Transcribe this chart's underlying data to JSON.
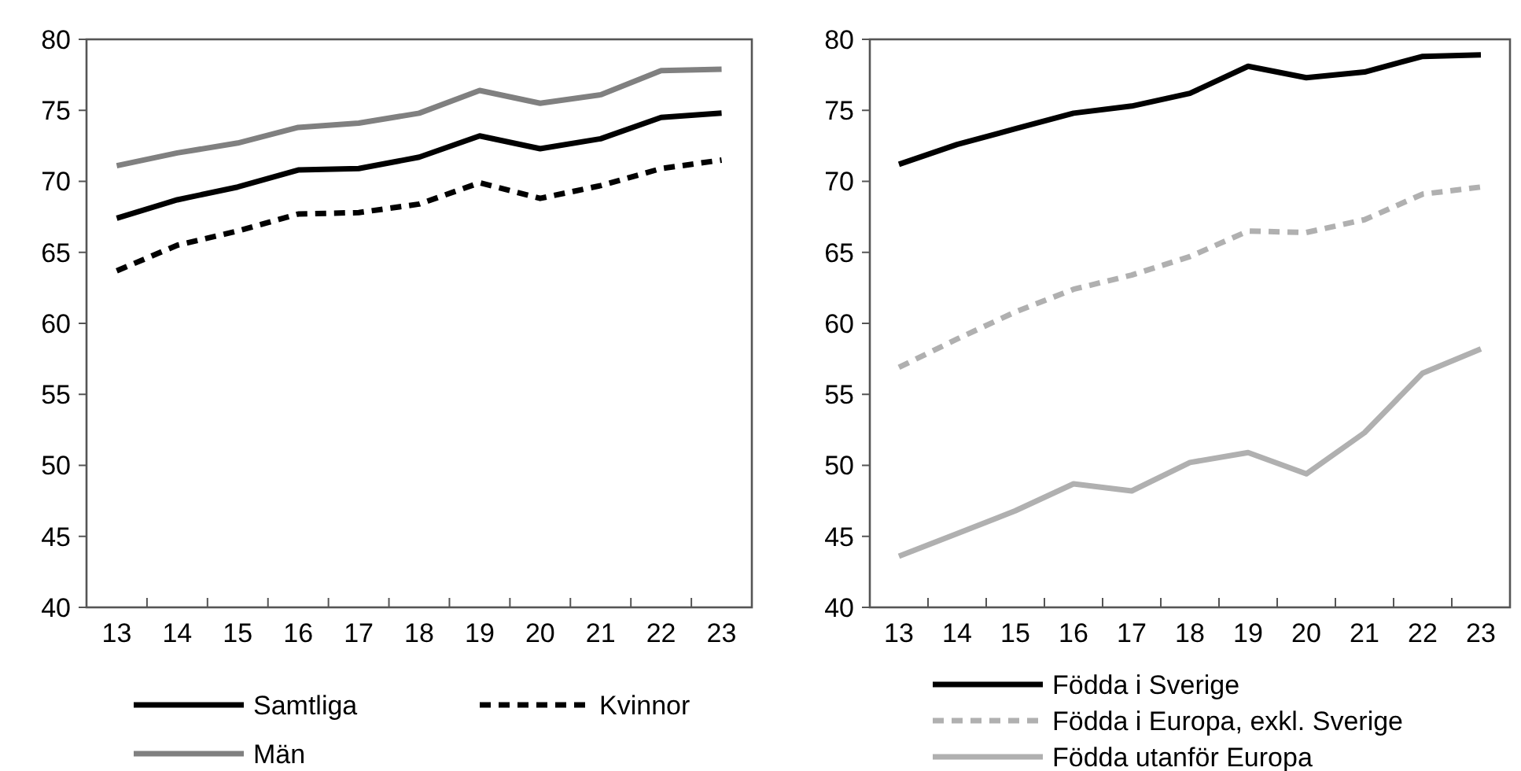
{
  "chart_data": [
    {
      "type": "line",
      "categories": [
        "13",
        "14",
        "15",
        "16",
        "17",
        "18",
        "19",
        "20",
        "21",
        "22",
        "23"
      ],
      "ylim": [
        40,
        80
      ],
      "yticks": [
        40,
        45,
        50,
        55,
        60,
        65,
        70,
        75,
        80
      ],
      "grid": false,
      "legend": "bottom",
      "series": [
        {
          "name": "Samtliga",
          "color": "#000000",
          "line_style": "solid",
          "values": [
            67.4,
            68.7,
            69.6,
            70.8,
            70.9,
            71.7,
            73.2,
            72.3,
            73.0,
            74.5,
            74.8
          ]
        },
        {
          "name": "Kvinnor",
          "color": "#000000",
          "line_style": "dashed",
          "values": [
            63.7,
            65.5,
            66.5,
            67.7,
            67.8,
            68.4,
            69.9,
            68.8,
            69.7,
            70.9,
            71.5
          ]
        },
        {
          "name": "Män",
          "color": "#808080",
          "line_style": "solid",
          "values": [
            71.1,
            72.0,
            72.7,
            73.8,
            74.1,
            74.8,
            76.4,
            75.5,
            76.1,
            77.8,
            77.9
          ]
        }
      ]
    },
    {
      "type": "line",
      "categories": [
        "13",
        "14",
        "15",
        "16",
        "17",
        "18",
        "19",
        "20",
        "21",
        "22",
        "23"
      ],
      "ylim": [
        40,
        80
      ],
      "yticks": [
        40,
        45,
        50,
        55,
        60,
        65,
        70,
        75,
        80
      ],
      "grid": false,
      "legend": "bottom",
      "series": [
        {
          "name": "Födda i Sverige",
          "color": "#000000",
          "line_style": "solid",
          "values": [
            71.2,
            72.6,
            73.7,
            74.8,
            75.3,
            76.2,
            78.1,
            77.3,
            77.7,
            78.8,
            78.9
          ]
        },
        {
          "name": "Födda i Europa, exkl. Sverige",
          "color": "#b0b0b0",
          "line_style": "dashed",
          "values": [
            56.9,
            58.9,
            60.8,
            62.4,
            63.4,
            64.7,
            66.5,
            66.4,
            67.3,
            69.1,
            69.6
          ]
        },
        {
          "name": "Födda utanför Europa",
          "color": "#b0b0b0",
          "line_style": "solid",
          "values": [
            43.6,
            45.2,
            46.8,
            48.7,
            48.2,
            50.2,
            50.9,
            49.4,
            52.3,
            56.5,
            58.2
          ]
        }
      ]
    }
  ]
}
